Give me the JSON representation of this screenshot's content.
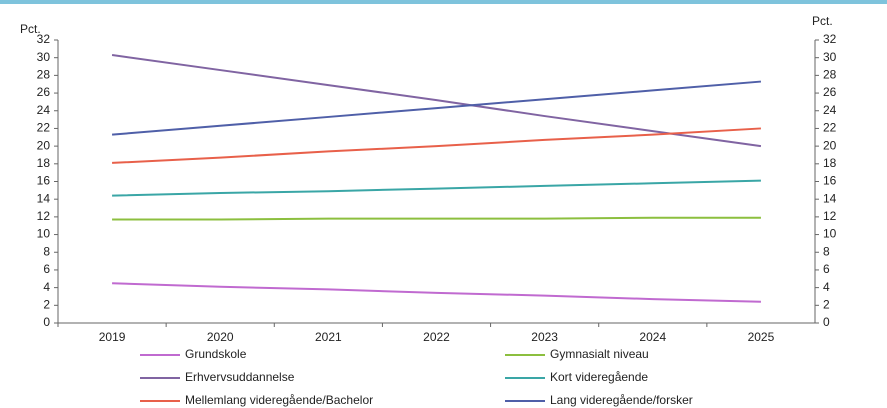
{
  "chart_data": {
    "type": "line",
    "y_label": "Pct.",
    "y2_label": "Pct.",
    "categories": [
      "2019",
      "2020",
      "2021",
      "2022",
      "2023",
      "2024",
      "2025"
    ],
    "series": [
      {
        "name": "Grundskole",
        "color": "#c06ad0",
        "values": [
          4.5,
          4.1,
          3.8,
          3.4,
          3.1,
          2.7,
          2.4
        ]
      },
      {
        "name": "Gymnasialt niveau",
        "color": "#8cbf3f",
        "values": [
          11.7,
          11.7,
          11.8,
          11.8,
          11.8,
          11.9,
          11.9
        ]
      },
      {
        "name": "Erhvervsuddannelse",
        "color": "#8064a2",
        "values": [
          30.3,
          28.6,
          26.9,
          25.2,
          23.4,
          21.7,
          20.0
        ]
      },
      {
        "name": "Kort videregående",
        "color": "#3aa6a6",
        "values": [
          14.4,
          14.7,
          14.9,
          15.2,
          15.5,
          15.8,
          16.1
        ]
      },
      {
        "name": "Mellemlang videregående/Bachelor",
        "color": "#e8604a",
        "values": [
          18.1,
          18.7,
          19.4,
          20.0,
          20.7,
          21.3,
          22.0
        ]
      },
      {
        "name": "Lang videregående/forsker",
        "color": "#4f5fa8",
        "values": [
          21.3,
          22.3,
          23.3,
          24.3,
          25.3,
          26.3,
          27.3
        ]
      }
    ],
    "ylim": [
      0,
      32
    ],
    "yticks": [
      0,
      2,
      4,
      6,
      8,
      10,
      12,
      14,
      16,
      18,
      20,
      22,
      24,
      26,
      28,
      30,
      32
    ],
    "y2lim": [
      0,
      32
    ],
    "y2ticks": [
      0,
      2,
      4,
      6,
      8,
      10,
      12,
      14,
      16,
      18,
      20,
      22,
      24,
      26,
      28,
      30,
      32
    ]
  }
}
